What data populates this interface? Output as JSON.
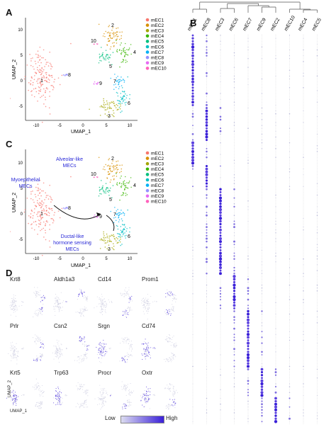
{
  "panel_labels": [
    "A",
    "B",
    "C",
    "D"
  ],
  "clusters": [
    "mEC1",
    "mEC2",
    "mEC3",
    "mEC4",
    "mEC5",
    "mEC6",
    "mEC7",
    "mEC8",
    "mEC9",
    "mEC10"
  ],
  "cluster_colors": [
    "#f8766d",
    "#d89000",
    "#a3a500",
    "#39b600",
    "#00bf7d",
    "#00bfc4",
    "#00b0f6",
    "#9590ff",
    "#e76bf3",
    "#ff62bc"
  ],
  "umap": {
    "xlabel": "UMAP_1",
    "ylabel": "UMAP_2",
    "x_ticks": [
      "-10",
      "-5",
      "0",
      "5",
      "10"
    ],
    "y_ticks": [
      "10",
      "5",
      "0",
      "-5"
    ],
    "cluster_numbers": [
      "1",
      "2",
      "3",
      "4",
      "5",
      "6",
      "7",
      "8",
      "9",
      "10"
    ]
  },
  "panel_c_annotations": {
    "alveolar": "Alveolar-like MECs",
    "alveolar_l1": "Alveolar-like",
    "alveolar_l2": "MECs",
    "myo_l1": "Myoepithelial",
    "myo_l2": "MECs",
    "duct_l1": "Ductal-like",
    "duct_l2": "hormone sensing",
    "duct_l3": "MECs"
  },
  "dotplot": {
    "columns": [
      "mEC1",
      "mEC8",
      "mEC3",
      "mEC6",
      "mEC7",
      "mEC9",
      "mEC2",
      "mEC10",
      "mEC4",
      "mEC5"
    ]
  },
  "feature_genes": [
    "Krt8",
    "Aldh1a3",
    "Cd14",
    "Prom1",
    "Prlr",
    "Csn2",
    "Srgn",
    "Cd74",
    "Krt5",
    "Trp63",
    "Procr",
    "Oxtr"
  ],
  "feature_axes": {
    "x": "UMAP_1",
    "y": "UMAP_2"
  },
  "colorbar": {
    "low": "Low",
    "high": "High",
    "low_color": "#dcdcf0",
    "high_color": "#3a20d8"
  }
}
